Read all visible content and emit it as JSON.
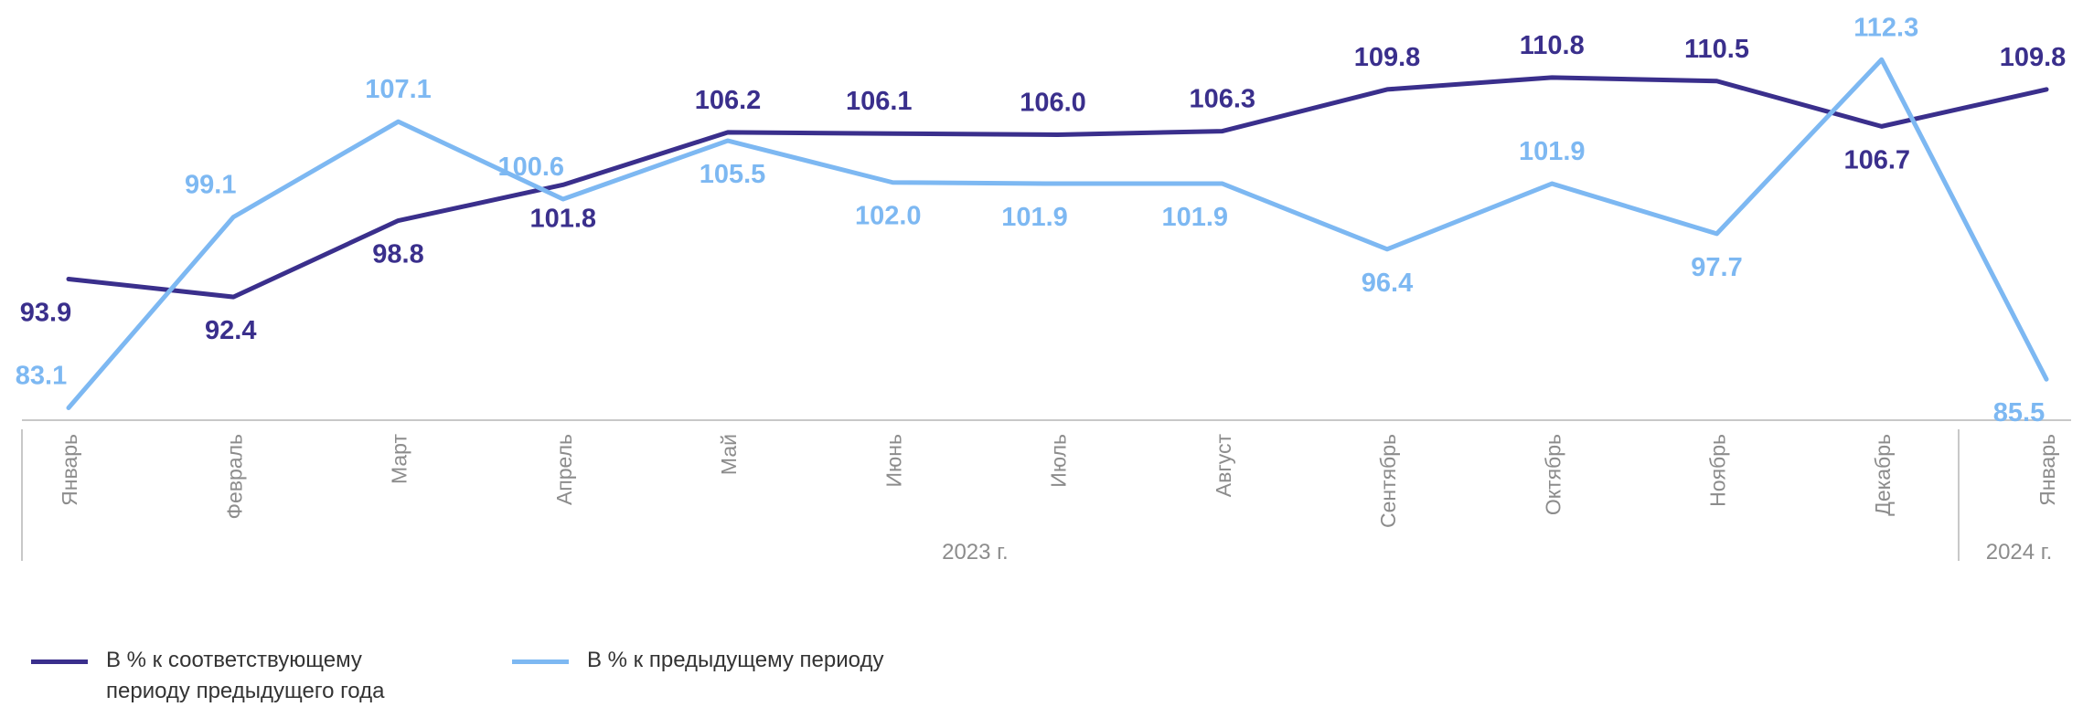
{
  "chart_data": {
    "type": "line",
    "categories": [
      "Январь",
      "Февраль",
      "Март",
      "Апрель",
      "Май",
      "Июнь",
      "Июль",
      "Август",
      "Сентябрь",
      "Октябрь",
      "Ноябрь",
      "Декабрь",
      "Январь"
    ],
    "year_groups": [
      {
        "label": "2023 г."
      },
      {
        "label": "2024 г."
      }
    ],
    "series": [
      {
        "name": "В % к соответствующему периоду предыдущего года",
        "color": "#3a2f8c",
        "values": [
          93.9,
          92.4,
          98.8,
          101.8,
          106.2,
          106.1,
          106.0,
          106.3,
          109.8,
          110.8,
          110.5,
          106.7,
          109.8
        ],
        "value_labels": [
          "93.9",
          "92.4",
          "98.8",
          "101.8",
          "106.2",
          "106.1",
          "106.0",
          "106.3",
          "109.8",
          "110.8",
          "110.5",
          "106.7",
          "109.8"
        ]
      },
      {
        "name": "В % к предыдущему периоду",
        "color": "#7db8f2",
        "values": [
          83.1,
          99.1,
          107.1,
          100.6,
          105.5,
          102.0,
          101.9,
          101.9,
          96.4,
          101.9,
          97.7,
          112.3,
          85.5
        ],
        "value_labels": [
          "83.1",
          "99.1",
          "107.1",
          "100.6",
          "105.5",
          "102.0",
          "101.9",
          "101.9",
          "96.4",
          "101.9",
          "97.7",
          "112.3",
          "85.5"
        ]
      }
    ],
    "ylim": [
      80,
      115
    ],
    "grid": false,
    "legend_position": "bottom-left",
    "axis_color": "#c8c8c8",
    "tick_label_color": "#8c8c8c"
  }
}
